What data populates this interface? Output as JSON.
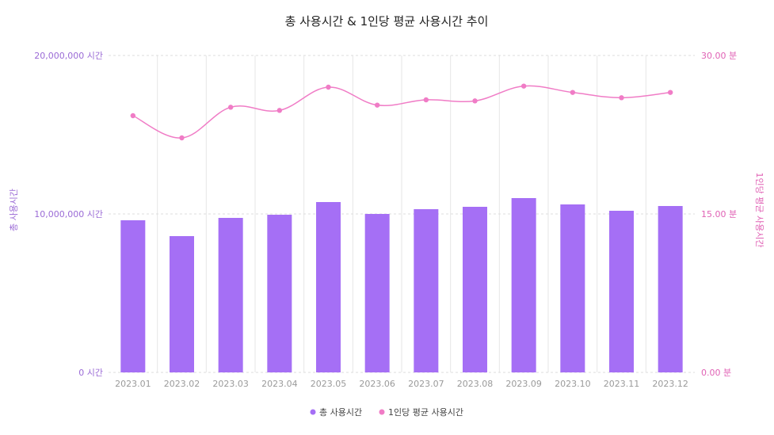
{
  "chart_data": {
    "type": "bar",
    "title": "총 사용시간 & 1인당 평균 사용시간 추이",
    "categories": [
      "2023.01",
      "2023.02",
      "2023.03",
      "2023.04",
      "2023.05",
      "2023.06",
      "2023.07",
      "2023.08",
      "2023.09",
      "2023.10",
      "2023.11",
      "2023.12"
    ],
    "series": [
      {
        "name": "총 사용시간",
        "type": "bar",
        "axis": "left",
        "values": [
          9600000,
          8600000,
          9750000,
          9950000,
          10750000,
          10000000,
          10300000,
          10450000,
          11000000,
          10600000,
          10200000,
          10500000
        ]
      },
      {
        "name": "1인당 평균 사용시간",
        "type": "line",
        "axis": "right",
        "values": [
          24.3,
          22.2,
          25.1,
          24.8,
          27.0,
          25.3,
          25.8,
          25.7,
          27.1,
          26.5,
          26.0,
          26.5
        ]
      }
    ],
    "ylabel_left": "총 사용시간",
    "ylabel_right": "1인당 평균 사용시간",
    "ylim_left": [
      0,
      20000000
    ],
    "ylim_right": [
      0,
      30
    ],
    "yticks_left": [
      "0 시간",
      "10,000,000 시간",
      "20,000,000 시간"
    ],
    "yticks_right": [
      "0.00 분",
      "15.00 분",
      "30.00 분"
    ],
    "legend_position": "bottom-center",
    "colors": {
      "bar": "#a56ff5",
      "line": "#f07cc6",
      "left_axis_text": "#9b6bd6",
      "right_axis_text": "#e062b5"
    }
  }
}
